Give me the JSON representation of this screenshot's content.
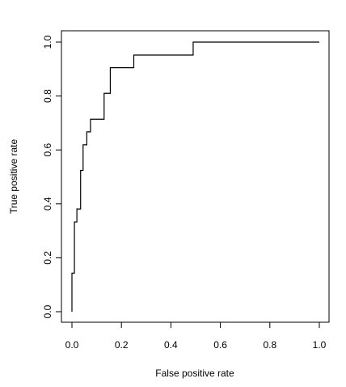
{
  "chart_data": {
    "type": "line",
    "title": "",
    "xlabel": "False positive rate",
    "ylabel": "True positive rate",
    "xlim": [
      0,
      1
    ],
    "ylim": [
      0,
      1
    ],
    "x_ticks": [
      0.0,
      0.2,
      0.4,
      0.6,
      0.8,
      1.0
    ],
    "y_ticks": [
      0.0,
      0.2,
      0.4,
      0.6,
      0.8,
      1.0
    ],
    "x_tick_labels": [
      "0.0",
      "0.2",
      "0.4",
      "0.6",
      "0.8",
      "1.0"
    ],
    "y_tick_labels": [
      "0.0",
      "0.2",
      "0.4",
      "0.6",
      "0.8",
      "1.0"
    ],
    "grid": false,
    "legend": "none",
    "series": [
      {
        "line_color": "#000000",
        "step": true,
        "x": [
          0.0,
          0.0,
          0.01,
          0.01,
          0.02,
          0.02,
          0.035,
          0.035,
          0.045,
          0.045,
          0.06,
          0.06,
          0.075,
          0.075,
          0.13,
          0.13,
          0.155,
          0.155,
          0.25,
          0.25,
          0.49,
          0.49,
          1.0
        ],
        "y": [
          0.0,
          0.143,
          0.143,
          0.333,
          0.333,
          0.381,
          0.381,
          0.524,
          0.524,
          0.619,
          0.619,
          0.667,
          0.667,
          0.714,
          0.714,
          0.81,
          0.81,
          0.905,
          0.905,
          0.952,
          0.952,
          1.0,
          1.0
        ]
      }
    ]
  }
}
